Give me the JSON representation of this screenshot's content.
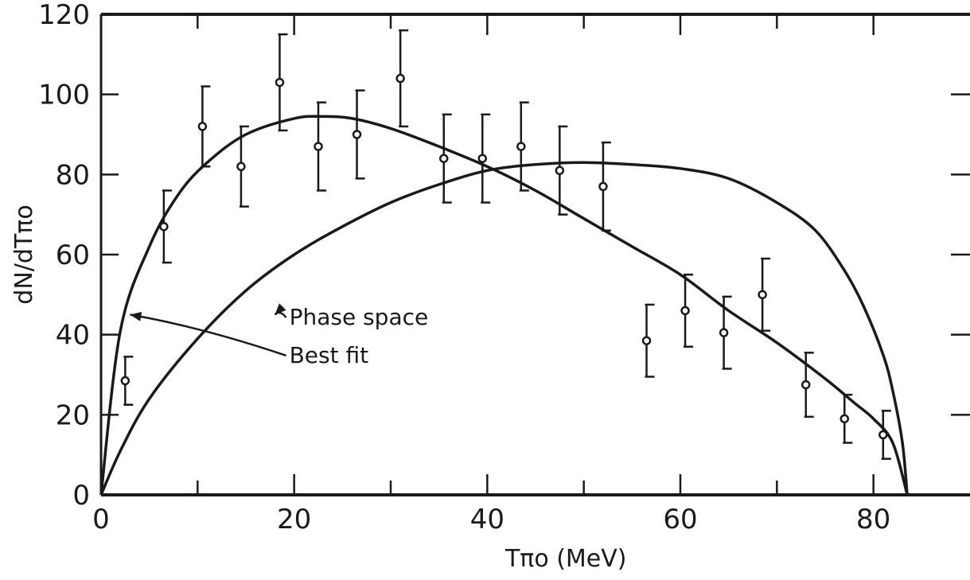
{
  "chart_data": {
    "type": "scatter",
    "xlabel": "Tπo  (MeV)",
    "ylabel": "dN/dTπo",
    "xlim": [
      0,
      90
    ],
    "ylim": [
      0,
      120
    ],
    "x_ticks": [
      0,
      20,
      40,
      60,
      80
    ],
    "y_ticks": [
      0,
      20,
      40,
      60,
      80,
      100,
      120
    ],
    "x_tick_labels": [
      "0",
      "20",
      "40",
      "60",
      "80"
    ],
    "y_tick_labels": [
      "0",
      "20",
      "40",
      "60",
      "80",
      "100",
      "120"
    ],
    "grid": false,
    "series": [
      {
        "kind": "points-with-error-bars",
        "x": [
          2.5,
          6.5,
          10.5,
          14.5,
          18.5,
          22.5,
          26.5,
          31,
          35.5,
          39.5,
          43.5,
          47.5,
          52,
          56.5,
          60.5,
          64.5,
          68.5,
          73,
          77,
          81
        ],
        "y": [
          28.5,
          67,
          92,
          82,
          103,
          87,
          90,
          104,
          84,
          84,
          87,
          81,
          77,
          38.5,
          46,
          40.5,
          50,
          27.5,
          19,
          15
        ],
        "yerr_low": [
          6,
          9,
          10,
          10,
          12,
          11,
          11,
          12,
          11,
          11,
          11,
          11,
          11,
          9,
          9,
          9,
          9,
          8,
          6,
          6
        ],
        "yerr_high": [
          6,
          9,
          10,
          10,
          12,
          11,
          11,
          12,
          11,
          11,
          11,
          11,
          11,
          9,
          9,
          9,
          9,
          8,
          6,
          6
        ]
      },
      {
        "name": "Best fit",
        "kind": "curve",
        "x": [
          0,
          2,
          5,
          8,
          11,
          15,
          20,
          23,
          26,
          30,
          35,
          40,
          45,
          50,
          55,
          60,
          65,
          70,
          75,
          78,
          80,
          82,
          83.5
        ],
        "y": [
          0,
          41,
          62,
          75,
          83,
          90,
          94,
          94.5,
          94,
          91.5,
          87,
          82,
          76,
          69,
          62,
          55,
          46,
          38,
          29,
          23,
          19,
          13,
          0
        ]
      },
      {
        "name": "Phase space",
        "kind": "curve",
        "x": [
          0,
          2,
          5,
          10,
          15,
          20,
          25,
          30,
          35,
          40,
          45,
          50,
          55,
          60,
          65,
          70,
          74,
          77,
          79,
          81,
          82,
          83,
          83.5
        ],
        "y": [
          0,
          11,
          24,
          39,
          51,
          60,
          67,
          73,
          77.5,
          81,
          82.5,
          83,
          82.5,
          81.5,
          79,
          73,
          66,
          56,
          47,
          35,
          26,
          13,
          0
        ]
      }
    ],
    "annotations": [
      {
        "text": "Phase space",
        "x": 19.5,
        "y": 42.5,
        "arrow_to": [
          18,
          45
        ]
      },
      {
        "text": "Best fit",
        "x": 19.5,
        "y": 33,
        "arrow_to": [
          3,
          45
        ]
      }
    ]
  }
}
